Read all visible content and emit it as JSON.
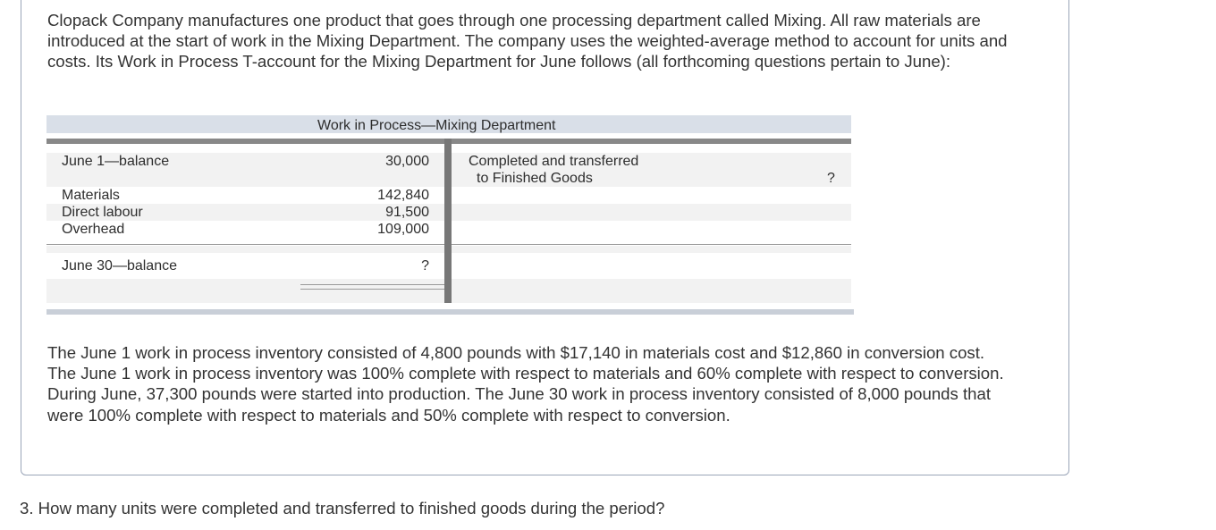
{
  "intro_text": "Clopack Company manufactures one product that goes through one processing department called Mixing. All raw materials are introduced at the start of work in the Mixing Department. The company uses the weighted-average method to account for units and costs. Its Work in Process T-account for the Mixing Department for June follows (all forthcoming questions pertain to June):",
  "t_account": {
    "title": "Work in Process—Mixing Department",
    "debit": {
      "opening_label": "June 1—balance",
      "opening_value": "30,000",
      "materials_label": "Materials",
      "materials_value": "142,840",
      "labour_label": "Direct labour",
      "labour_value": "91,500",
      "overhead_label": "Overhead",
      "overhead_value": "109,000",
      "closing_label": "June 30—balance",
      "closing_value": "?"
    },
    "credit": {
      "line1": "Completed and transferred",
      "line2": "to Finished Goods",
      "value": "?"
    }
  },
  "details_text": "The June 1 work in process inventory consisted of 4,800 pounds with $17,140 in materials cost and $12,860 in conversion cost. The June 1 work in process inventory was 100% complete with respect to materials and 60% complete with respect to conversion. During June, 37,300 pounds were started into production. The June 30 work in process inventory consisted of 8,000 pounds that were 100% complete with respect to materials and 50% complete with respect to conversion.",
  "question_text": "3. How many units were completed and transferred to finished goods during the period?"
}
